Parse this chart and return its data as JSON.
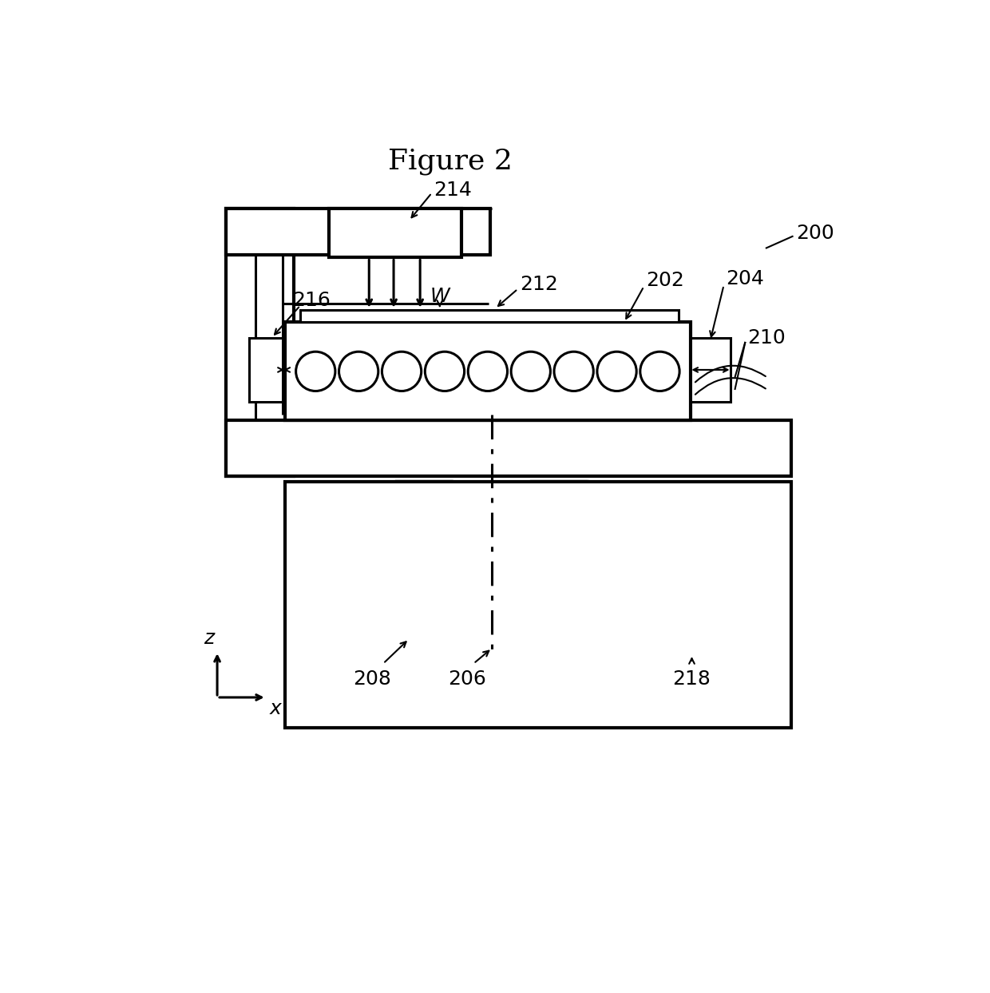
{
  "title": "Figure 2",
  "bg_color": "#ffffff",
  "line_color": "#000000",
  "label_200": "200",
  "label_202": "202",
  "label_204": "204",
  "label_206": "206",
  "label_208": "208",
  "label_210": "210",
  "label_212": "212",
  "label_214": "214",
  "label_216": "216",
  "label_218": "218",
  "label_W": "W",
  "num_circles": 9,
  "axis_label_z": "z",
  "axis_label_x": "x",
  "fig_width": 12.4,
  "fig_height": 12.43,
  "dpi": 100
}
